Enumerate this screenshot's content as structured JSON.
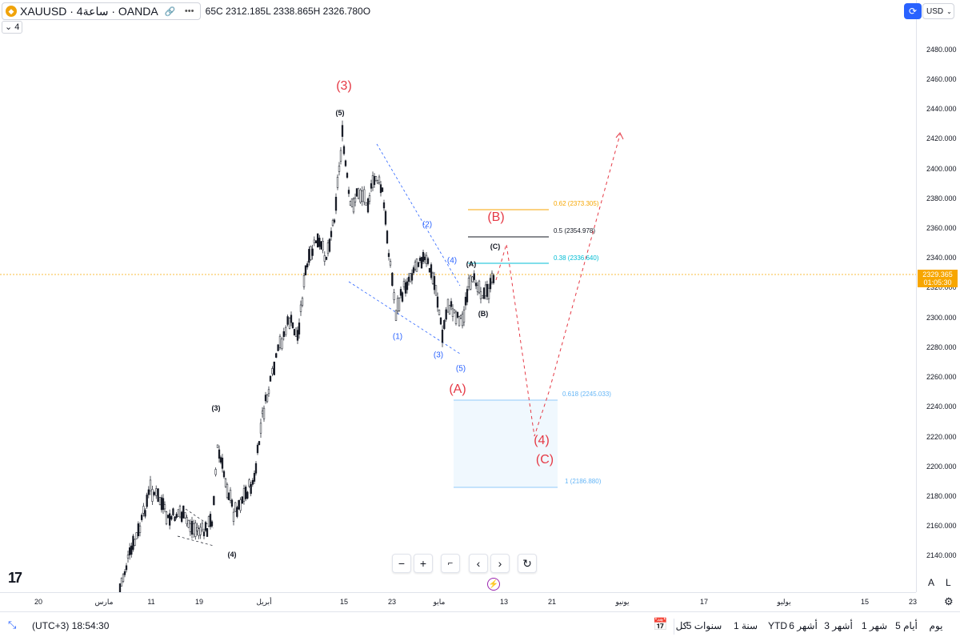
{
  "legend": {
    "symbol": "XAUUSD · 4ساعة · OANDA",
    "logo_icon": "gold-coin-icon",
    "ohlc": "65C  2312.185L  2338.865H  2326.780O",
    "indicator_value": "4"
  },
  "currency": "USD",
  "price_axis": {
    "labels": [
      "2480.000",
      "2460.000",
      "2440.000",
      "2420.000",
      "2400.000",
      "2380.000",
      "2360.000",
      "2340.000",
      "2320.000",
      "2300.000",
      "2280.000",
      "2260.000",
      "2240.000",
      "2220.000",
      "2200.000",
      "2180.000",
      "2160.000",
      "2140.000"
    ],
    "current_price": "2329.365",
    "countdown": "01:05:30",
    "auto_button": "A",
    "log_button": "L"
  },
  "time_axis": {
    "labels": [
      "20",
      "مارس",
      "11",
      "19",
      "أبريل",
      "15",
      "23",
      "مايو",
      "13",
      "21",
      "يونيو",
      "17",
      "يوليو",
      "15",
      "23"
    ]
  },
  "annotations": {
    "wave3_major": "(3)",
    "waveA_major": "(A)",
    "waveB_major": "(B)",
    "waveC_major": "(C)",
    "wave4_major": "(4)",
    "black": [
      "(5)",
      "(3)",
      "(4)",
      "(A)",
      "(B)",
      "(C)"
    ],
    "blue": [
      "(1)",
      "(2)",
      "(3)",
      "(4)",
      "(5)"
    ]
  },
  "fib_levels": {
    "f062": "0.62 (2373.305)",
    "f05": "0.5 (2354.978)",
    "f038": "0.38 (2336.640)",
    "f0618": "0.618 (2245.033)",
    "f1": "1 (2186.880)"
  },
  "colors": {
    "accent": "#2962ff",
    "annotation_red": "#e53945",
    "fib_orange": "#f7a600",
    "fib_teal": "#00bcd4",
    "fib_box": "#90caf9",
    "candle": "#131722"
  },
  "bottom_bar": {
    "timezone": "(UTC+3) 18:54:30",
    "ranges": [
      "يوم",
      "5 أيام",
      "1 شهر",
      "3 أشهر",
      "6 أشهر",
      "YTD",
      "1 سنة",
      "5 سنوات",
      "كل"
    ],
    "calendar_icon": "calendar-range-icon"
  },
  "nav_buttons": [
    "zoom-out",
    "zoom-in",
    "reset-scale",
    "scroll-left",
    "scroll-right",
    "reset-chart"
  ]
}
